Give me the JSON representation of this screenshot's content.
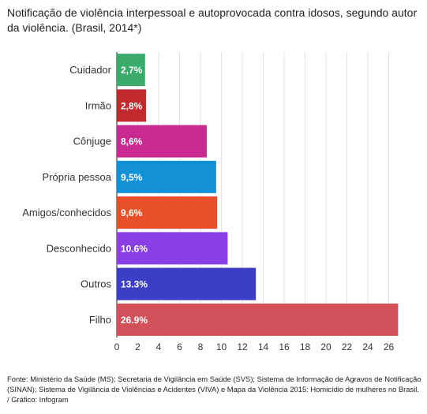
{
  "chart_data": {
    "type": "bar",
    "orientation": "horizontal",
    "title": "Notificação de violência interpessoal e autoprovocada contra idosos, segundo autor da violência. (Brasil, 2014*)",
    "categories": [
      "Cuidador",
      "Irmão",
      "Cônjuge",
      "Própria pessoa",
      "Amigos/conhecidos",
      "Desconhecido",
      "Outros",
      "Filho"
    ],
    "values": [
      2.7,
      2.8,
      8.6,
      9.5,
      9.6,
      10.6,
      13.3,
      26.9
    ],
    "value_labels": [
      "2,7%",
      "2,8%",
      "8,6%",
      "9,5%",
      "9,6%",
      "10.6%",
      "13.3%",
      "26.9%"
    ],
    "colors": [
      "#3aab6b",
      "#c2292e",
      "#c92a8f",
      "#1391d6",
      "#e7502b",
      "#8a3fe6",
      "#3c3fc4",
      "#d2505a"
    ],
    "xticks": [
      0,
      2,
      4,
      6,
      8,
      10,
      12,
      14,
      16,
      18,
      20,
      22,
      24,
      26
    ],
    "xlim": [
      0,
      28
    ],
    "xlabel": "",
    "ylabel": "",
    "grid": true
  },
  "footer": "Fonte: Ministério da Saúde (MS); Secretaria de Vigilância em Saúde (SVS); Sistema de Informação de Agravos de Notificação (SINAN); Sistema de Vigilância de Violências e Acidentes (VIVA) e Mapa da Violência 2015: Homicídio de mulheres no Brasil. / Gráfico: Infogram"
}
